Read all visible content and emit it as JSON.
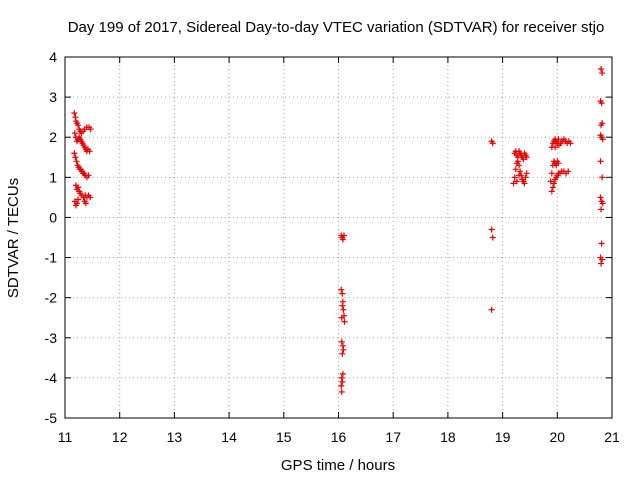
{
  "chart_data": {
    "type": "scatter",
    "title": "Day 199 of 2017, Sidereal Day-to-day VTEC variation (SDTVAR) for receiver stjo",
    "xlabel": "GPS time / hours",
    "ylabel": "SDTVAR / TECUs",
    "xlim": [
      11,
      21
    ],
    "ylim": [
      -5,
      4
    ],
    "xticks": [
      "11",
      "12",
      "13",
      "14",
      "15",
      "16",
      "17",
      "18",
      "19",
      "20",
      "21"
    ],
    "yticks": [
      "4",
      "3",
      "2",
      "1",
      "0",
      "-1",
      "-2",
      "-3",
      "-4",
      "-5"
    ],
    "grid": true,
    "marker": "+",
    "color": "#e00000",
    "series": [
      {
        "name": "SDTVAR",
        "points": [
          [
            11.17,
            2.6
          ],
          [
            11.19,
            2.5
          ],
          [
            11.2,
            2.4
          ],
          [
            11.22,
            2.35
          ],
          [
            11.24,
            2.3
          ],
          [
            11.26,
            2.2
          ],
          [
            11.28,
            2.15
          ],
          [
            11.3,
            2.1
          ],
          [
            11.33,
            2.15
          ],
          [
            11.36,
            2.2
          ],
          [
            11.4,
            2.25
          ],
          [
            11.44,
            2.25
          ],
          [
            11.47,
            2.2
          ],
          [
            11.18,
            2.1
          ],
          [
            11.2,
            2.0
          ],
          [
            11.22,
            1.9
          ],
          [
            11.24,
            1.95
          ],
          [
            11.26,
            2.0
          ],
          [
            11.28,
            1.95
          ],
          [
            11.3,
            1.9
          ],
          [
            11.32,
            1.85
          ],
          [
            11.34,
            1.8
          ],
          [
            11.36,
            1.75
          ],
          [
            11.38,
            1.7
          ],
          [
            11.4,
            1.65
          ],
          [
            11.42,
            1.7
          ],
          [
            11.45,
            1.65
          ],
          [
            11.17,
            1.6
          ],
          [
            11.19,
            1.5
          ],
          [
            11.21,
            1.4
          ],
          [
            11.23,
            1.3
          ],
          [
            11.25,
            1.25
          ],
          [
            11.27,
            1.2
          ],
          [
            11.29,
            1.2
          ],
          [
            11.31,
            1.15
          ],
          [
            11.33,
            1.1
          ],
          [
            11.35,
            1.1
          ],
          [
            11.37,
            1.05
          ],
          [
            11.4,
            1.0
          ],
          [
            11.43,
            1.05
          ],
          [
            11.2,
            0.8
          ],
          [
            11.22,
            0.7
          ],
          [
            11.24,
            0.75
          ],
          [
            11.26,
            0.65
          ],
          [
            11.28,
            0.6
          ],
          [
            11.31,
            0.55
          ],
          [
            11.34,
            0.5
          ],
          [
            11.37,
            0.55
          ],
          [
            11.4,
            0.5
          ],
          [
            11.43,
            0.55
          ],
          [
            11.46,
            0.5
          ],
          [
            11.18,
            0.4
          ],
          [
            11.2,
            0.3
          ],
          [
            11.22,
            0.35
          ],
          [
            11.24,
            0.45
          ],
          [
            11.36,
            0.4
          ],
          [
            11.38,
            0.35
          ],
          [
            16.05,
            -0.45
          ],
          [
            16.07,
            -0.5
          ],
          [
            16.08,
            -0.55
          ],
          [
            16.1,
            -0.45
          ],
          [
            16.05,
            -1.8
          ],
          [
            16.07,
            -1.9
          ],
          [
            16.08,
            -2.1
          ],
          [
            16.09,
            -2.3
          ],
          [
            16.1,
            -2.45
          ],
          [
            16.06,
            -2.5
          ],
          [
            16.11,
            -2.6
          ],
          [
            16.07,
            -2.2
          ],
          [
            16.06,
            -3.1
          ],
          [
            16.08,
            -3.2
          ],
          [
            16.09,
            -3.3
          ],
          [
            16.07,
            -3.4
          ],
          [
            16.08,
            -3.9
          ],
          [
            16.06,
            -4.0
          ],
          [
            16.07,
            -4.1
          ],
          [
            16.05,
            -4.2
          ],
          [
            16.06,
            -4.35
          ],
          [
            18.8,
            1.9
          ],
          [
            18.82,
            1.85
          ],
          [
            18.8,
            -0.3
          ],
          [
            18.82,
            -0.5
          ],
          [
            18.8,
            -2.3
          ],
          [
            19.2,
            0.85
          ],
          [
            19.22,
            1.0
          ],
          [
            19.24,
            1.2
          ],
          [
            19.26,
            1.35
          ],
          [
            19.28,
            1.5
          ],
          [
            19.3,
            1.65
          ],
          [
            19.32,
            1.6
          ],
          [
            19.34,
            1.55
          ],
          [
            19.36,
            1.5
          ],
          [
            19.38,
            1.45
          ],
          [
            19.4,
            1.6
          ],
          [
            19.42,
            1.55
          ],
          [
            19.44,
            1.5
          ],
          [
            19.22,
            1.6
          ],
          [
            19.24,
            1.65
          ],
          [
            19.26,
            1.55
          ],
          [
            19.28,
            1.4
          ],
          [
            19.3,
            1.3
          ],
          [
            19.32,
            1.15
          ],
          [
            19.34,
            1.05
          ],
          [
            19.36,
            0.95
          ],
          [
            19.38,
            0.9
          ],
          [
            19.4,
            0.85
          ],
          [
            19.42,
            1.0
          ],
          [
            19.44,
            1.1
          ],
          [
            19.26,
            0.9
          ],
          [
            19.3,
            1.05
          ],
          [
            19.9,
            0.65
          ],
          [
            19.92,
            0.75
          ],
          [
            19.94,
            0.85
          ],
          [
            19.96,
            0.95
          ],
          [
            19.98,
            1.0
          ],
          [
            20.0,
            1.05
          ],
          [
            20.02,
            1.1
          ],
          [
            20.05,
            1.1
          ],
          [
            20.08,
            1.15
          ],
          [
            20.12,
            1.15
          ],
          [
            20.16,
            1.1
          ],
          [
            20.2,
            1.15
          ],
          [
            19.92,
            1.3
          ],
          [
            19.94,
            1.4
          ],
          [
            19.96,
            1.35
          ],
          [
            19.98,
            1.3
          ],
          [
            20.0,
            1.4
          ],
          [
            20.02,
            1.35
          ],
          [
            19.9,
            1.1
          ],
          [
            19.88,
            0.9
          ],
          [
            19.9,
            1.75
          ],
          [
            19.92,
            1.85
          ],
          [
            19.94,
            1.9
          ],
          [
            19.96,
            1.95
          ],
          [
            19.98,
            1.9
          ],
          [
            20.0,
            1.85
          ],
          [
            20.03,
            1.8
          ],
          [
            20.06,
            1.85
          ],
          [
            20.09,
            1.9
          ],
          [
            20.12,
            1.95
          ],
          [
            20.15,
            1.9
          ],
          [
            20.18,
            1.85
          ],
          [
            20.21,
            1.9
          ],
          [
            20.24,
            1.85
          ],
          [
            19.96,
            1.75
          ],
          [
            20.02,
            1.95
          ],
          [
            20.8,
            3.7
          ],
          [
            20.82,
            3.6
          ],
          [
            20.79,
            2.9
          ],
          [
            20.81,
            2.85
          ],
          [
            20.8,
            2.3
          ],
          [
            20.82,
            2.35
          ],
          [
            20.79,
            2.05
          ],
          [
            20.81,
            2.0
          ],
          [
            20.83,
            1.95
          ],
          [
            20.79,
            1.4
          ],
          [
            20.82,
            1.0
          ],
          [
            20.79,
            0.5
          ],
          [
            20.81,
            0.4
          ],
          [
            20.83,
            0.35
          ],
          [
            20.8,
            0.2
          ],
          [
            20.81,
            -0.65
          ],
          [
            20.79,
            -1.0
          ],
          [
            20.82,
            -1.05
          ],
          [
            20.8,
            -1.15
          ]
        ]
      }
    ]
  }
}
